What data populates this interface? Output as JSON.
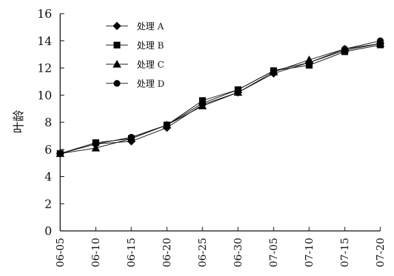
{
  "chart_data": {
    "type": "line",
    "title": "",
    "xlabel": "",
    "ylabel": "叶龄",
    "ylim": [
      0,
      16
    ],
    "yticks": [
      0,
      2,
      4,
      6,
      8,
      10,
      12,
      14,
      16
    ],
    "categories": [
      "06-05",
      "06-10",
      "06-15",
      "06-20",
      "06-25",
      "06-30",
      "07-05",
      "07-10",
      "07-15",
      "07-20"
    ],
    "grid": false,
    "legend_position": "top-left",
    "series": [
      {
        "name": "处理 A",
        "marker": "diamond",
        "values": [
          5.7,
          6.4,
          6.6,
          7.6,
          9.3,
          10.2,
          11.6,
          12.4,
          13.3,
          13.8
        ]
      },
      {
        "name": "处理 B",
        "marker": "square",
        "values": [
          5.7,
          6.5,
          6.8,
          7.8,
          9.6,
          10.4,
          11.8,
          12.2,
          13.2,
          13.7
        ]
      },
      {
        "name": "处理 C",
        "marker": "triangle",
        "values": [
          5.7,
          6.1,
          6.8,
          7.8,
          9.2,
          10.2,
          11.7,
          12.6,
          13.4,
          13.8
        ]
      },
      {
        "name": "处理 D",
        "marker": "circle",
        "values": [
          5.7,
          6.4,
          6.9,
          7.8,
          9.4,
          10.4,
          11.8,
          12.4,
          13.4,
          14.0
        ]
      }
    ],
    "colors": {
      "line": "#111111",
      "marker": "#000000",
      "axis": "#000000"
    }
  }
}
